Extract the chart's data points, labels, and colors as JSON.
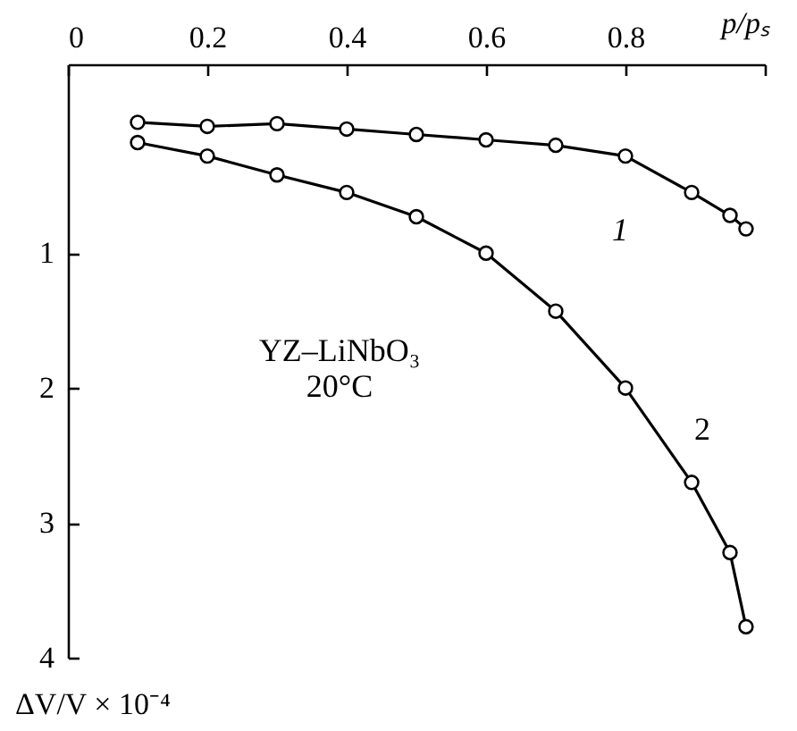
{
  "chart_data": {
    "type": "line",
    "xlabel": "p/pₛ",
    "ylabel": "ΔV/V × 10⁻⁴",
    "xlim": [
      0,
      1
    ],
    "xticks": [
      {
        "value": 0,
        "label": "0"
      },
      0.2,
      0.4,
      0.6,
      0.8,
      {
        "value": 1,
        "label": null
      }
    ],
    "ylim": [
      4,
      -0.4
    ],
    "yticks": [
      1,
      2,
      3,
      4
    ],
    "series": [
      {
        "name": "1",
        "color": "#000000",
        "x": [
          0.1,
          0.2,
          0.3,
          0.4,
          0.5,
          0.6,
          0.7,
          0.8,
          0.895,
          0.95,
          0.973
        ],
        "values": [
          0.03,
          0.06,
          0.04,
          0.08,
          0.12,
          0.16,
          0.2,
          0.28,
          0.55,
          0.72,
          0.82
        ]
      },
      {
        "name": "2",
        "color": "#000000",
        "x": [
          0.1,
          0.2,
          0.3,
          0.4,
          0.5,
          0.6,
          0.7,
          0.8,
          0.895,
          0.95,
          0.973
        ],
        "values": [
          0.18,
          0.28,
          0.42,
          0.55,
          0.73,
          1.0,
          1.43,
          2.0,
          2.7,
          3.22,
          3.77
        ]
      }
    ],
    "annotations": [
      "YZ–LiNbO₃\n20°C"
    ],
    "marker": "circle",
    "line_style": "solid",
    "grid": false,
    "legend": false
  }
}
